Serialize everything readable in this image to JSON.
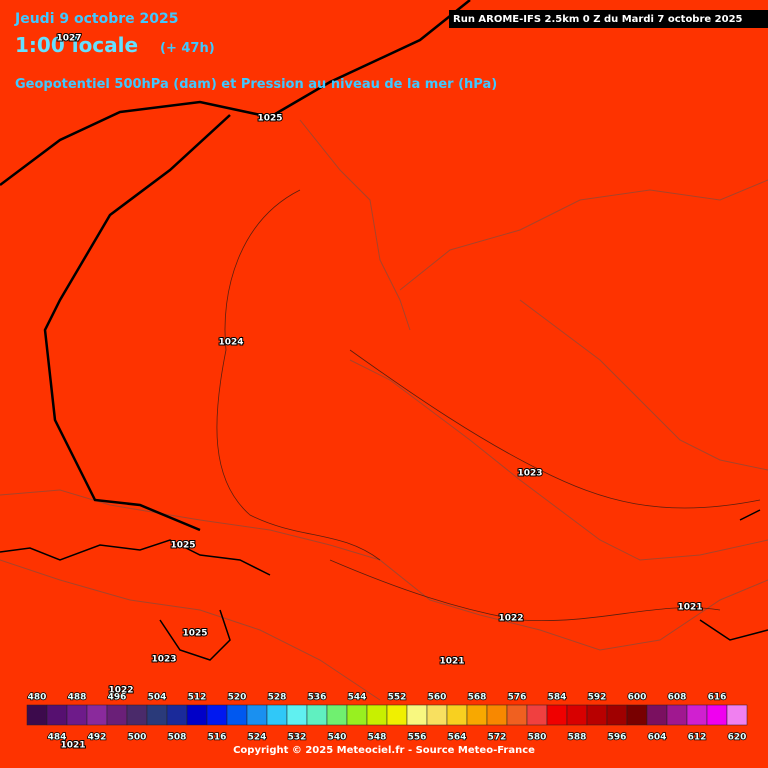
{
  "header": {
    "date": "Jeudi 9 octobre 2025",
    "time": "1:00 locale",
    "lead": "(+ 47h)",
    "subtitle": "Geopotentiel 500hPa (dam) et Pression au niveau de la mer (hPa)",
    "run": "Run AROME-IFS 2.5km 0 Z du Mardi 7 octobre 2025"
  },
  "isobar_labels": [
    "1027",
    "1025",
    "1024",
    "1023",
    "1025",
    "1025",
    "1023",
    "1022",
    "1021",
    "1021",
    "1022",
    "1021"
  ],
  "color_scale": {
    "values": [
      480,
      484,
      488,
      492,
      496,
      500,
      504,
      508,
      512,
      516,
      520,
      524,
      528,
      532,
      536,
      540,
      544,
      548,
      552,
      556,
      560,
      564,
      568,
      572,
      576,
      580,
      584,
      588,
      592,
      596,
      600,
      604,
      608,
      612,
      616,
      620
    ],
    "colors": [
      "#3c0a4c",
      "#561070",
      "#6e1b8a",
      "#8a2a9c",
      "#6a1f78",
      "#4a2a6a",
      "#2a3a7a",
      "#1a2a9a",
      "#0000c8",
      "#0018f0",
      "#0058f0",
      "#1a90f0",
      "#30c8f8",
      "#60f0f0",
      "#60f0c0",
      "#70f070",
      "#98f020",
      "#c8f000",
      "#f0f000",
      "#f8f880",
      "#f8e060",
      "#f8d020",
      "#f8a800",
      "#f88800",
      "#f06020",
      "#f04040",
      "#f00000",
      "#d80000",
      "#b80000",
      "#a00000",
      "#780000",
      "#7a1060",
      "#a01890",
      "#d020d0",
      "#f000f0",
      "#f080f0"
    ]
  },
  "copyright": "Copyright © 2025 Meteociel.fr - Source Meteo-France"
}
